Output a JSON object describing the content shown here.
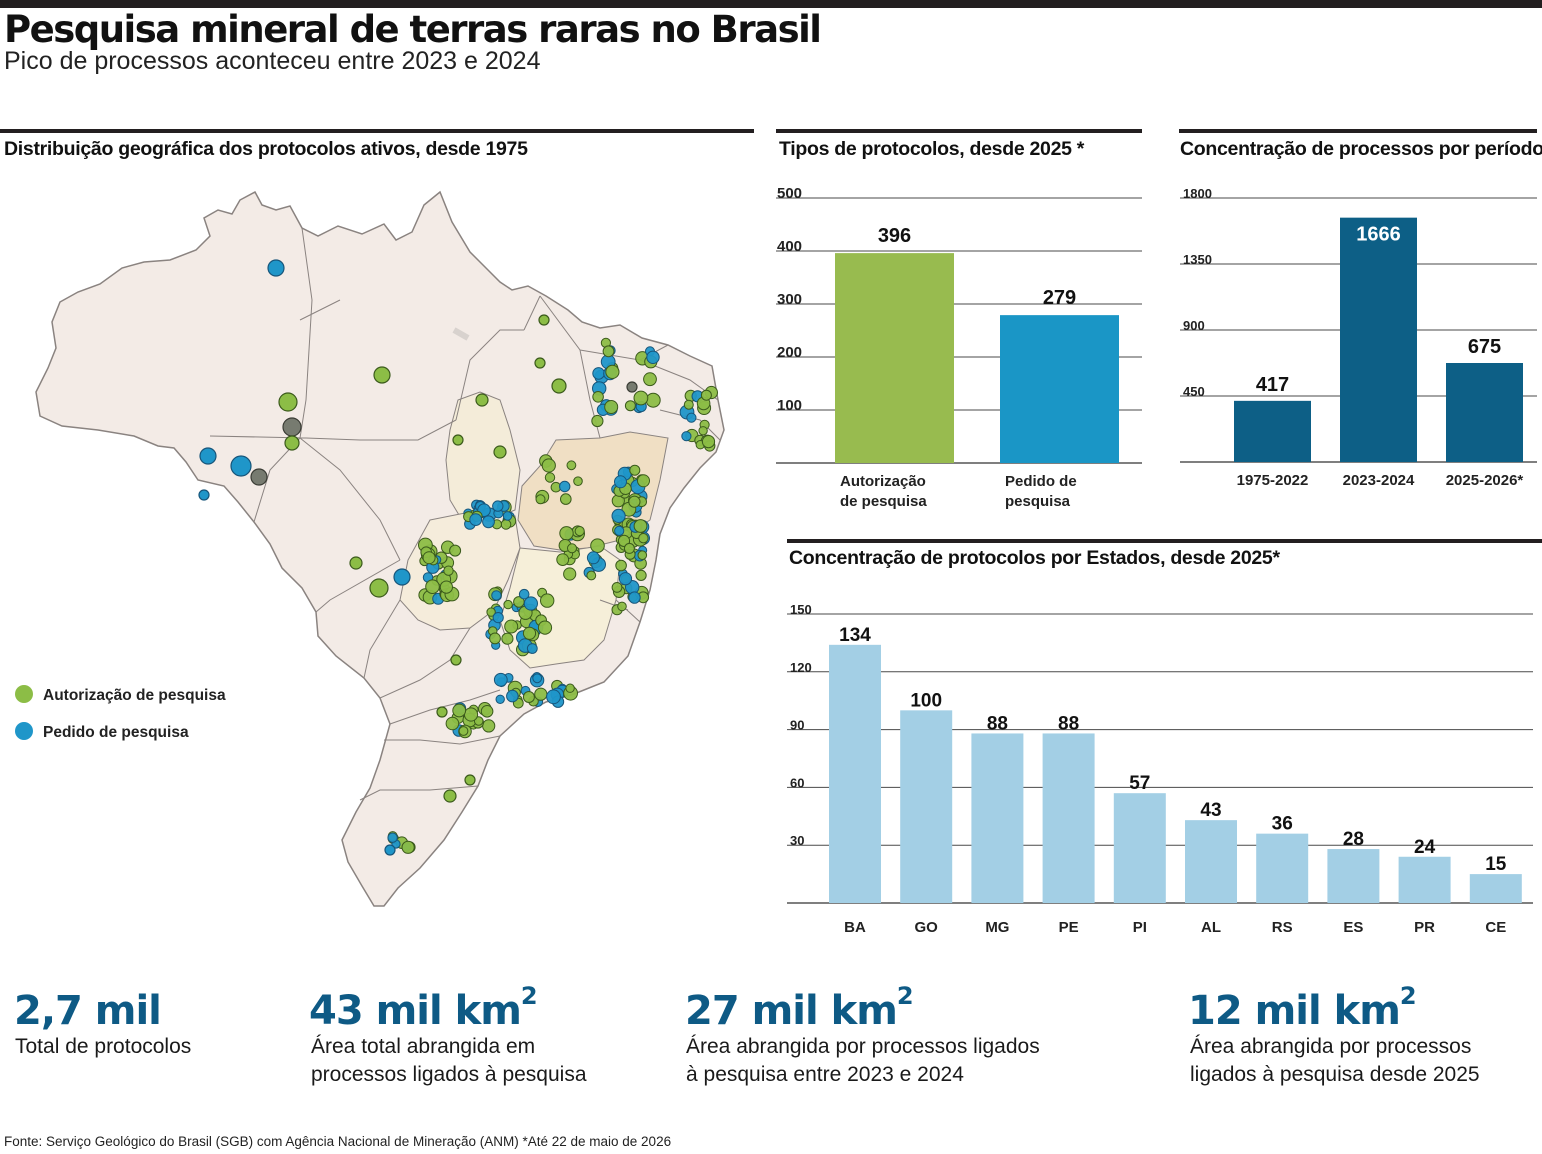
{
  "header": {
    "title": "Pesquisa mineral de terras raras no Brasil",
    "subtitle": "Pico de processos aconteceu entre 2023 e 2024"
  },
  "map": {
    "title": "Distribuição geográfica dos protocolos ativos, desde 1975",
    "legend": [
      {
        "label": "Autorização de pesquisa",
        "color": "#8cbd46"
      },
      {
        "label": "Pedido de pesquisa",
        "color": "#1f96c9"
      }
    ]
  },
  "colors": {
    "green": "#98bb4f",
    "blue": "#1a96c6",
    "navy": "#0d5f86",
    "lightblue": "#a3cfe5",
    "statblue": "#0e5a85"
  },
  "chart_data": [
    {
      "type": "bar",
      "title": "Tipos de protocolos, desde 2025 *",
      "categories": [
        "Autorização de pesquisa",
        "Pedido de pesquisa"
      ],
      "category_lines": [
        [
          "Autorização",
          "de pesquisa"
        ],
        [
          "Pedido de",
          "pesquisa"
        ]
      ],
      "values": [
        396,
        279
      ],
      "colors": [
        "#98bb4f",
        "#1a96c6"
      ],
      "yticks": [
        100,
        200,
        300,
        400,
        500
      ],
      "ylim": [
        0,
        500
      ],
      "grid": true
    },
    {
      "type": "bar",
      "title": "Concentração de processos por períodos",
      "categories": [
        "1975-2022",
        "2023-2024",
        "2025-2026*"
      ],
      "values": [
        417,
        1666,
        675
      ],
      "colors": [
        "#0d5f86",
        "#0d5f86",
        "#0d5f86"
      ],
      "yticks": [
        450,
        900,
        1350,
        1800
      ],
      "ylim": [
        0,
        1800
      ],
      "grid": true
    },
    {
      "type": "bar",
      "title": "Concentração de protocolos por Estados, desde 2025*",
      "categories": [
        "BA",
        "GO",
        "MG",
        "PE",
        "PI",
        "AL",
        "RS",
        "ES",
        "PR",
        "CE"
      ],
      "values": [
        134,
        100,
        88,
        88,
        57,
        43,
        36,
        28,
        24,
        15
      ],
      "colors": [
        "#a3cfe5"
      ],
      "yticks": [
        30,
        60,
        90,
        120,
        150
      ],
      "ylim": [
        0,
        150
      ],
      "grid": true
    }
  ],
  "stats": [
    {
      "value": "2,7 mil",
      "sup": "",
      "desc": [
        "Total de protocolos"
      ]
    },
    {
      "value": "43 mil km",
      "sup": "2",
      "desc": [
        "Área total abrangida em",
        "processos ligados à pesquisa"
      ]
    },
    {
      "value": "27 mil km",
      "sup": "2",
      "desc": [
        "Área abrangida por processos ligados",
        "à pesquisa entre 2023 e 2024"
      ]
    },
    {
      "value": "12 mil km",
      "sup": "2",
      "desc": [
        "Área abrangida por processos",
        "ligados à pesquisa desde 2025"
      ]
    }
  ],
  "footer": {
    "source": "Fonte: Serviço Geológico do Brasil (SGB) com Agência Nacional de Mineração (ANM)  *Até 22 de maio de 2026"
  }
}
